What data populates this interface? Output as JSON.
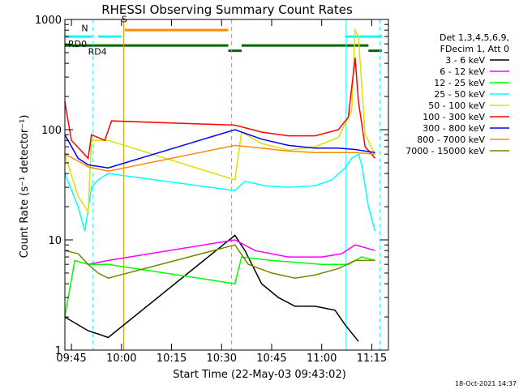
{
  "chart_data": {
    "type": "line",
    "title": "RHESSI Observing Summary Count Rates",
    "xlabel": "Start Time (22-May-03 09:43:02)",
    "ylabel": "Count Rate (s⁻¹ detector⁻¹)",
    "y_scale": "log",
    "ylim": [
      1,
      1000
    ],
    "xlim": [
      "09:43:02",
      "11:20:00"
    ],
    "x_ticks": [
      "09:45",
      "10:00",
      "10:15",
      "10:30",
      "10:45",
      "11:00",
      "11:15"
    ],
    "y_ticks": [
      "1",
      "10",
      "100",
      "1000"
    ],
    "legend_header": [
      "Det 1,3,4,5,6,9,",
      "FDecim 1, Att 0"
    ],
    "legend_placement": "right",
    "annotations": {
      "flags": [
        {
          "text": "RD0",
          "color": "#006400"
        },
        {
          "text": "RD4",
          "color": "#006400"
        },
        {
          "text": "N",
          "color": "#00ffff"
        },
        {
          "text": "S",
          "color": "#ff8c00"
        }
      ]
    },
    "series": [
      {
        "name": "3 - 6 keV",
        "color": "#000000",
        "points": [
          [
            "09:43",
            2
          ],
          [
            "09:50",
            1.5
          ],
          [
            "09:53",
            1.4
          ],
          [
            "09:56",
            1.3
          ],
          [
            "10:34",
            11
          ],
          [
            "10:37",
            8
          ],
          [
            "10:42",
            4
          ],
          [
            "10:47",
            3
          ],
          [
            "10:52",
            2.5
          ],
          [
            "10:58",
            2.5
          ],
          [
            "11:04",
            2.3
          ],
          [
            "11:07",
            1.7
          ],
          [
            "11:11",
            1.2
          ]
        ]
      },
      {
        "name": "6 - 12 keV",
        "color": "#ff00ff",
        "points": [
          [
            "09:50",
            6
          ],
          [
            "09:56",
            6.5
          ],
          [
            "10:34",
            10
          ],
          [
            "10:40",
            8
          ],
          [
            "10:50",
            7
          ],
          [
            "11:00",
            7
          ],
          [
            "11:06",
            7.5
          ],
          [
            "11:10",
            9
          ],
          [
            "11:13",
            8.5
          ],
          [
            "11:16",
            8
          ]
        ]
      },
      {
        "name": "12 - 25 keV",
        "color": "#00ff00",
        "points": [
          [
            "09:43",
            2
          ],
          [
            "09:46",
            6.5
          ],
          [
            "09:50",
            6
          ],
          [
            "09:56",
            6
          ],
          [
            "10:34",
            4
          ],
          [
            "10:36",
            7
          ],
          [
            "10:45",
            6.5
          ],
          [
            "11:00",
            6
          ],
          [
            "11:08",
            6
          ],
          [
            "11:12",
            7
          ],
          [
            "11:16",
            6.5
          ]
        ]
      },
      {
        "name": "25 - 50 keV",
        "color": "#00ffff",
        "points": [
          [
            "09:43",
            40
          ],
          [
            "09:47",
            20
          ],
          [
            "09:49",
            12
          ],
          [
            "09:51",
            30
          ],
          [
            "09:53",
            35
          ],
          [
            "09:56",
            40
          ],
          [
            "10:34",
            28
          ],
          [
            "10:37",
            34
          ],
          [
            "10:43",
            31
          ],
          [
            "10:50",
            30
          ],
          [
            "10:58",
            31
          ],
          [
            "11:03",
            35
          ],
          [
            "11:07",
            45
          ],
          [
            "11:09",
            55
          ],
          [
            "11:11",
            60
          ],
          [
            "11:12",
            48
          ],
          [
            "11:14",
            20
          ],
          [
            "11:16",
            12
          ]
        ]
      },
      {
        "name": "50 - 100 keV",
        "color": "#e0e000",
        "points": [
          [
            "09:43",
            60
          ],
          [
            "09:47",
            25
          ],
          [
            "09:50",
            18
          ],
          [
            "09:51",
            80
          ],
          [
            "09:56",
            80
          ],
          [
            "10:34",
            35
          ],
          [
            "10:36",
            95
          ],
          [
            "10:42",
            75
          ],
          [
            "10:50",
            65
          ],
          [
            "10:58",
            70
          ],
          [
            "11:05",
            85
          ],
          [
            "11:09",
            150
          ],
          [
            "11:10",
            800
          ],
          [
            "11:11",
            700
          ],
          [
            "11:13",
            90
          ],
          [
            "11:16",
            60
          ]
        ]
      },
      {
        "name": "100 - 300 keV",
        "color": "#ff0000",
        "points": [
          [
            "09:43",
            180
          ],
          [
            "09:45",
            80
          ],
          [
            "09:50",
            55
          ],
          [
            "09:51",
            90
          ],
          [
            "09:55",
            80
          ],
          [
            "09:57",
            120
          ],
          [
            "10:34",
            110
          ],
          [
            "10:42",
            95
          ],
          [
            "10:50",
            88
          ],
          [
            "10:58",
            88
          ],
          [
            "11:05",
            100
          ],
          [
            "11:08",
            130
          ],
          [
            "11:10",
            450
          ],
          [
            "11:11",
            180
          ],
          [
            "11:13",
            70
          ],
          [
            "11:16",
            55
          ]
        ]
      },
      {
        "name": "300 - 800 keV",
        "color": "#0000ff",
        "points": [
          [
            "09:43",
            90
          ],
          [
            "09:47",
            55
          ],
          [
            "09:50",
            48
          ],
          [
            "09:56",
            45
          ],
          [
            "10:34",
            100
          ],
          [
            "10:42",
            82
          ],
          [
            "10:50",
            72
          ],
          [
            "10:58",
            68
          ],
          [
            "11:05",
            68
          ],
          [
            "11:10",
            66
          ],
          [
            "11:16",
            62
          ]
        ]
      },
      {
        "name": "800 - 7000 keV",
        "color": "#ff8c00",
        "points": [
          [
            "09:43",
            60
          ],
          [
            "09:47",
            52
          ],
          [
            "09:50",
            46
          ],
          [
            "09:56",
            42
          ],
          [
            "10:34",
            72
          ],
          [
            "10:42",
            68
          ],
          [
            "10:50",
            64
          ],
          [
            "10:58",
            62
          ],
          [
            "11:05",
            62
          ],
          [
            "11:10",
            62
          ],
          [
            "11:16",
            60
          ]
        ]
      },
      {
        "name": "7000 - 15000 keV",
        "color": "#808000",
        "points": [
          [
            "09:43",
            8
          ],
          [
            "09:47",
            7.5
          ],
          [
            "09:50",
            6
          ],
          [
            "09:53",
            5
          ],
          [
            "09:56",
            4.5
          ],
          [
            "10:34",
            9
          ],
          [
            "10:38",
            6
          ],
          [
            "10:45",
            5
          ],
          [
            "10:52",
            4.5
          ],
          [
            "10:58",
            4.8
          ],
          [
            "11:05",
            5.5
          ],
          [
            "11:10",
            6.5
          ],
          [
            "11:16",
            6.5
          ]
        ]
      }
    ],
    "vertical_markers": [
      {
        "at": "09:51:30",
        "color": "#00ffff",
        "style": "dashed"
      },
      {
        "at": "10:00:40",
        "color": "#ff8c00",
        "style": "solid"
      },
      {
        "at": "10:33:00",
        "color": "#ff8c00",
        "style": "dashed"
      },
      {
        "at": "11:07:20",
        "color": "#00ffff",
        "style": "solid"
      },
      {
        "at": "11:17:30",
        "color": "#00ffff",
        "style": "dashed"
      }
    ],
    "flag_bars": [
      {
        "from": "09:43",
        "to": "09:51",
        "color": "#00ffff",
        "level": 700
      },
      {
        "from": "09:53",
        "to": "10:00",
        "color": "#00ffff",
        "level": 700
      },
      {
        "from": "11:07",
        "to": "11:18",
        "color": "#00ffff",
        "level": 700
      },
      {
        "from": "10:01",
        "to": "10:32",
        "color": "#ff8c00",
        "level": 800
      },
      {
        "from": "09:43",
        "to": "10:32",
        "color": "#006400",
        "level": 580
      },
      {
        "from": "10:32",
        "to": "10:36",
        "color": "#006400",
        "level": 520
      },
      {
        "from": "10:36",
        "to": "11:14",
        "color": "#006400",
        "level": 580
      },
      {
        "from": "11:14",
        "to": "11:18",
        "color": "#006400",
        "level": 520
      }
    ]
  },
  "footer": {
    "timestamp": "18-Oct-2021 14:37"
  }
}
